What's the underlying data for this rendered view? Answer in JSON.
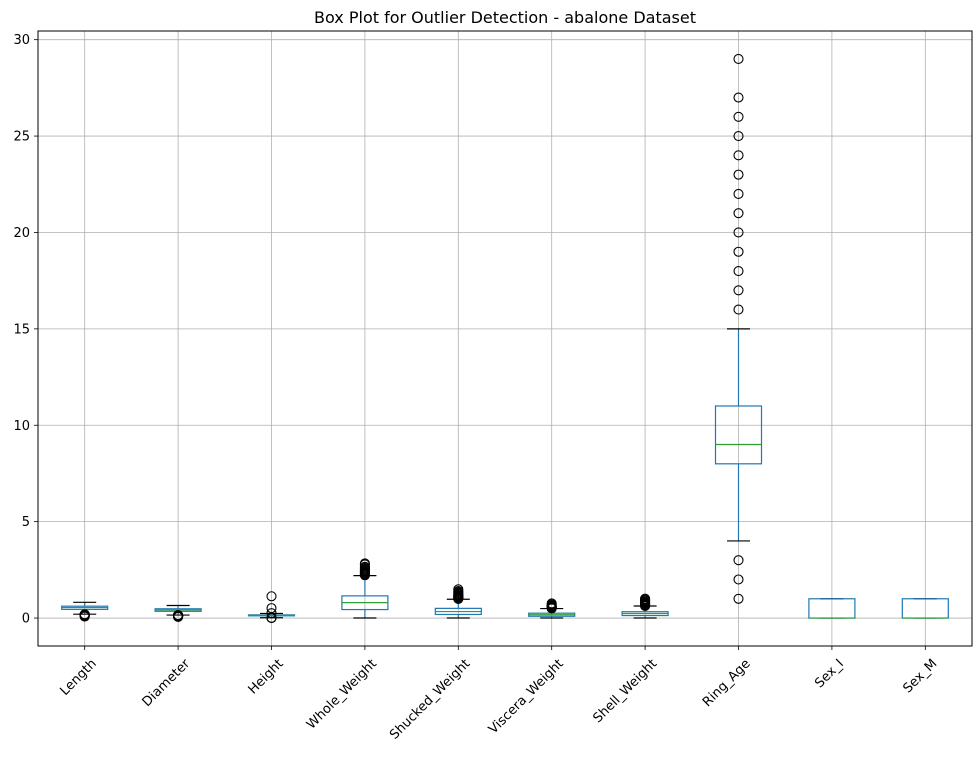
{
  "chart_data": {
    "type": "box",
    "title": "Box Plot for Outlier Detection - abalone Dataset",
    "xlabel": "",
    "ylabel": "",
    "ylim": [
      -1.45,
      30.45
    ],
    "yticks": [
      0,
      5,
      10,
      15,
      20,
      25,
      30
    ],
    "grid": true,
    "colors": {
      "box": "#1f77b4",
      "median": "#2ca02c",
      "whisker_cap": "#000000",
      "outlier": "#000000",
      "grid": "#b0b0b0"
    },
    "categories": [
      "Length",
      "Diameter",
      "Height",
      "Whole_Weight",
      "Shucked_Weight",
      "Viscera_Weight",
      "Shell_Weight",
      "Ring_Age",
      "Sex_I",
      "Sex_M"
    ],
    "boxes": [
      {
        "name": "Length",
        "whisker_low": 0.2,
        "q1": 0.45,
        "median": 0.545,
        "q3": 0.615,
        "whisker_high": 0.815,
        "outliers": [
          0.075,
          0.11,
          0.13,
          0.14,
          0.15,
          0.155,
          0.16,
          0.165,
          0.17,
          0.175,
          0.18,
          0.185,
          0.19
        ]
      },
      {
        "name": "Diameter",
        "whisker_low": 0.155,
        "q1": 0.35,
        "median": 0.425,
        "q3": 0.48,
        "whisker_high": 0.65,
        "outliers": [
          0.055,
          0.09,
          0.095,
          0.1,
          0.105,
          0.11,
          0.115,
          0.12,
          0.125,
          0.13,
          0.135,
          0.14,
          0.145,
          0.15
        ]
      },
      {
        "name": "Height",
        "whisker_low": 0.015,
        "q1": 0.115,
        "median": 0.14,
        "q3": 0.165,
        "whisker_high": 0.24,
        "outliers": [
          0.0,
          0.01,
          0.25,
          0.515,
          1.13
        ]
      },
      {
        "name": "Whole_Weight",
        "whisker_low": 0.002,
        "q1": 0.44,
        "median": 0.8,
        "q3": 1.15,
        "whisker_high": 2.2,
        "outliers": [
          2.22,
          2.26,
          2.3,
          2.35,
          2.4,
          2.45,
          2.5,
          2.55,
          2.6,
          2.66,
          2.78,
          2.83
        ]
      },
      {
        "name": "Shucked_Weight",
        "whisker_low": 0.001,
        "q1": 0.186,
        "median": 0.336,
        "q3": 0.502,
        "whisker_high": 0.975,
        "outliers": [
          0.99,
          1.02,
          1.05,
          1.08,
          1.1,
          1.13,
          1.16,
          1.2,
          1.25,
          1.3,
          1.35,
          1.4,
          1.49
        ]
      },
      {
        "name": "Viscera_Weight",
        "whisker_low": 0.0005,
        "q1": 0.093,
        "median": 0.171,
        "q3": 0.253,
        "whisker_high": 0.492,
        "outliers": [
          0.5,
          0.52,
          0.54,
          0.56,
          0.58,
          0.6,
          0.62,
          0.65,
          0.7,
          0.76
        ]
      },
      {
        "name": "Shell_Weight",
        "whisker_low": 0.0015,
        "q1": 0.13,
        "median": 0.234,
        "q3": 0.329,
        "whisker_high": 0.625,
        "outliers": [
          0.63,
          0.65,
          0.67,
          0.7,
          0.72,
          0.75,
          0.78,
          0.8,
          0.85,
          0.9,
          0.95,
          1.005
        ]
      },
      {
        "name": "Ring_Age",
        "whisker_low": 4,
        "q1": 8,
        "median": 9,
        "q3": 11,
        "whisker_high": 15,
        "outliers": [
          1,
          2,
          3,
          16,
          17,
          18,
          19,
          20,
          21,
          22,
          23,
          24,
          25,
          26,
          27,
          29
        ]
      },
      {
        "name": "Sex_I",
        "whisker_low": 0,
        "q1": 0,
        "median": 0,
        "q3": 1,
        "whisker_high": 1,
        "outliers": []
      },
      {
        "name": "Sex_M",
        "whisker_low": 0,
        "q1": 0,
        "median": 0,
        "q3": 1,
        "whisker_high": 1,
        "outliers": []
      }
    ]
  }
}
